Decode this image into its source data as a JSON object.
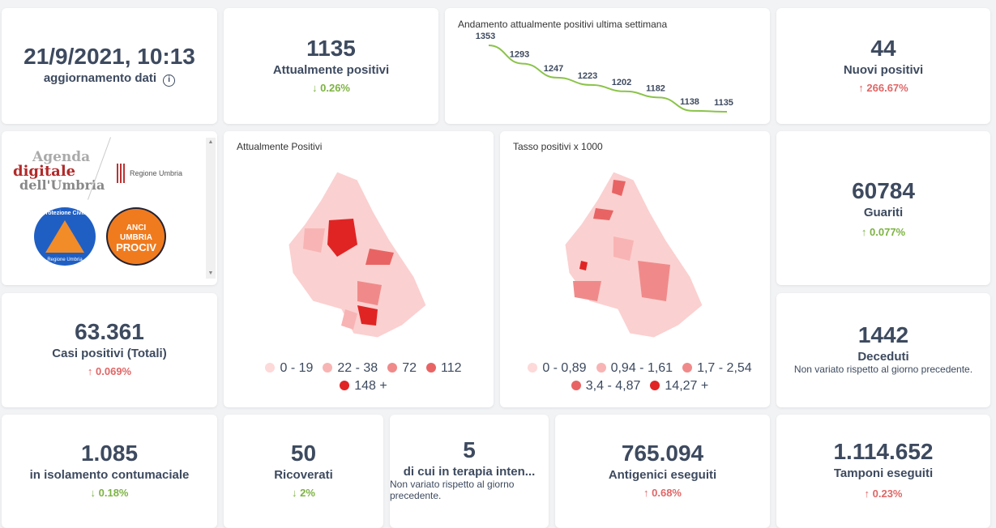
{
  "update": {
    "datetime": "21/9/2021, 10:13",
    "label": "aggiornamento dati",
    "info_icon": "info-icon"
  },
  "attualmente": {
    "value": "1135",
    "label": "Attualmente positivi",
    "change": "0.26%",
    "direction": "down"
  },
  "nuovi": {
    "value": "44",
    "label": "Nuovi positivi",
    "change": "266.67%",
    "direction": "up"
  },
  "guariti": {
    "value": "60784",
    "label": "Guariti",
    "change": "0.077%",
    "direction": "up"
  },
  "casi": {
    "value": "63.361",
    "label": "Casi positivi (Totali)",
    "change": "0.069%",
    "direction": "up"
  },
  "deceduti": {
    "value": "1442",
    "label": "Deceduti",
    "note": "Non variato rispetto al giorno precedente."
  },
  "isolamento": {
    "value": "1.085",
    "label": "in isolamento contumaciale",
    "change": "0.18%",
    "direction": "down"
  },
  "ricoverati": {
    "value": "50",
    "label": "Ricoverati",
    "change": "2%",
    "direction": "down"
  },
  "terapia": {
    "value": "5",
    "label": "di cui in terapia inten...",
    "note": "Non variato rispetto al giorno precedente."
  },
  "antigenici": {
    "value": "765.094",
    "label": "Antigenici eseguiti",
    "change": "0.68%",
    "direction": "up"
  },
  "tamponi": {
    "value": "1.114.652",
    "label": "Tamponi eseguiti",
    "change": "0.23%",
    "direction": "up"
  },
  "logos": {
    "agenda": [
      "Agenda",
      "digitale",
      "dell'Umbria"
    ],
    "regione": "Regione Umbria",
    "protezione": "Protezione Civile",
    "protezione_sub": "Regione Umbria",
    "anci": [
      "ANCI",
      "UMBRIA",
      "PROCIV"
    ]
  },
  "map1": {
    "title": "Attualmente Positivi",
    "legend": [
      {
        "label": "0 - 19",
        "color": "#fdd9d9"
      },
      {
        "label": "22 - 38",
        "color": "#f8b4b4"
      },
      {
        "label": "72",
        "color": "#f08a8a"
      },
      {
        "label": "112",
        "color": "#e86464"
      },
      {
        "label": "148 +",
        "color": "#e02424"
      }
    ]
  },
  "map2": {
    "title": "Tasso positivi x 1000",
    "legend": [
      {
        "label": "0 - 0,89",
        "color": "#fdd9d9"
      },
      {
        "label": "0,94 - 1,61",
        "color": "#f8b4b4"
      },
      {
        "label": "1,7 - 2,54",
        "color": "#f08a8a"
      },
      {
        "label": "3,4 - 4,87",
        "color": "#e86464"
      },
      {
        "label": "14,27 +",
        "color": "#e02424"
      }
    ]
  },
  "chart_data": {
    "type": "line",
    "title": "Andamento attualmente positivi ultima settimana",
    "values": [
      1353,
      1293,
      1247,
      1223,
      1202,
      1182,
      1138,
      1135
    ],
    "color": "#8bc34a"
  },
  "colors": {
    "up": "#e06666",
    "down": "#7cb342"
  }
}
